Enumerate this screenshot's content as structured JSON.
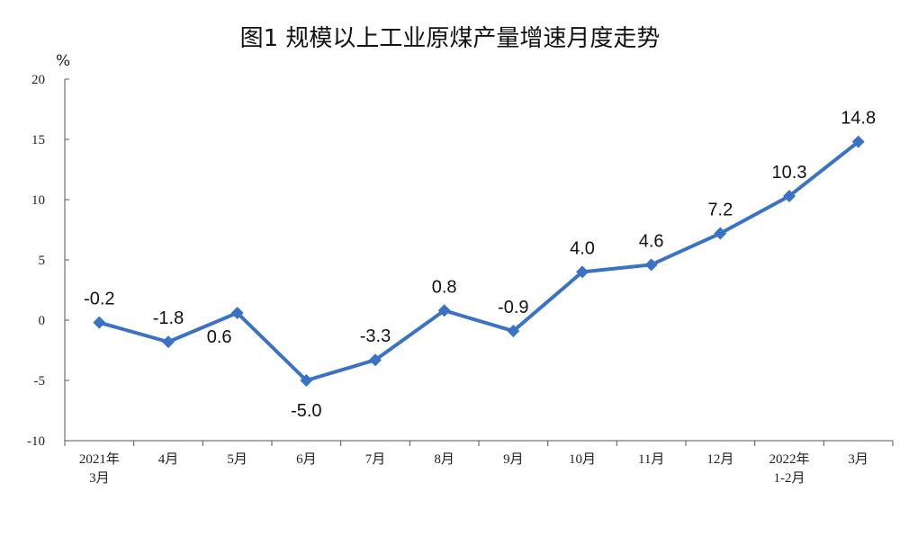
{
  "chart_data": {
    "type": "line",
    "title": "图1  规模以上工业原煤产量增速月度走势",
    "ylabel": "%",
    "ylim": [
      -10,
      20
    ],
    "yticks": [
      "20",
      "15",
      "10",
      "5",
      "0",
      "-5",
      "-10"
    ],
    "categories": [
      [
        "2021年",
        "3月"
      ],
      [
        "4月"
      ],
      [
        "5月"
      ],
      [
        "6月"
      ],
      [
        "7月"
      ],
      [
        "8月"
      ],
      [
        "9月"
      ],
      [
        "10月"
      ],
      [
        "11月"
      ],
      [
        "12月"
      ],
      [
        "2022年",
        "1-2月"
      ],
      [
        "3月"
      ]
    ],
    "values": [
      -0.2,
      -1.8,
      0.6,
      -5.0,
      -3.3,
      0.8,
      -0.9,
      4.0,
      4.6,
      7.2,
      10.3,
      14.8
    ],
    "data_labels": [
      "-0.2",
      "-1.8",
      "0.6",
      "-5.0",
      "-3.3",
      "0.8",
      "-0.9",
      "4.0",
      "4.6",
      "7.2",
      "10.3",
      "14.8"
    ],
    "line_color": "#3B73C4",
    "grid": false,
    "legend": "none"
  }
}
